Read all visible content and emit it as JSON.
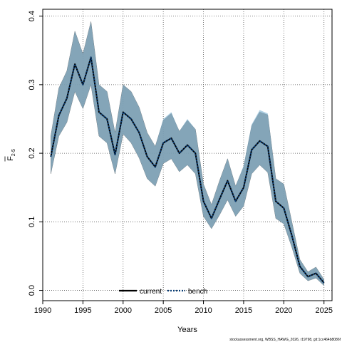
{
  "chart_data": {
    "type": "line",
    "xlabel": "Years",
    "ylabel_main": "F",
    "ylabel_sub": "2-5",
    "xlim": [
      1990,
      2026
    ],
    "ylim": [
      -0.015,
      0.41
    ],
    "x_ticks": [
      1990,
      1995,
      2000,
      2005,
      2010,
      2015,
      2020,
      2025
    ],
    "x_tick_labels": [
      "1990",
      "1995",
      "2000",
      "2005",
      "2010",
      "2015",
      "2020",
      "2025"
    ],
    "y_ticks": [
      0.0,
      0.1,
      0.2,
      0.3,
      0.4
    ],
    "y_tick_labels": [
      "0.0",
      "0.1",
      "0.2",
      "0.3",
      "0.4"
    ],
    "grid": true,
    "legend_position": "bottom",
    "years": [
      1991,
      1992,
      1993,
      1994,
      1995,
      1996,
      1997,
      1998,
      1999,
      2000,
      2001,
      2002,
      2003,
      2004,
      2005,
      2006,
      2007,
      2008,
      2009,
      2010,
      2011,
      2012,
      2013,
      2014,
      2015,
      2016,
      2017,
      2018,
      2019,
      2020,
      2021,
      2022,
      2023,
      2024,
      2025
    ],
    "series": [
      {
        "name": "current",
        "color": "#000000",
        "band_color": "#808080",
        "values": [
          0.195,
          0.255,
          0.28,
          0.33,
          0.3,
          0.34,
          0.26,
          0.25,
          0.198,
          0.26,
          0.25,
          0.23,
          0.195,
          0.18,
          0.215,
          0.222,
          0.2,
          0.212,
          0.2,
          0.13,
          0.105,
          0.133,
          0.16,
          0.13,
          0.15,
          0.205,
          0.218,
          0.21,
          0.13,
          0.12,
          0.08,
          0.035,
          0.02,
          0.025,
          0.011
        ],
        "lower": [
          0.17,
          0.225,
          0.245,
          0.29,
          0.265,
          0.3,
          0.225,
          0.215,
          0.17,
          0.228,
          0.215,
          0.193,
          0.163,
          0.152,
          0.185,
          0.192,
          0.173,
          0.183,
          0.17,
          0.108,
          0.09,
          0.11,
          0.132,
          0.108,
          0.123,
          0.17,
          0.183,
          0.172,
          0.105,
          0.097,
          0.063,
          0.025,
          0.014,
          0.018,
          0.007
        ],
        "upper": [
          0.225,
          0.295,
          0.32,
          0.378,
          0.345,
          0.392,
          0.3,
          0.29,
          0.23,
          0.3,
          0.29,
          0.267,
          0.23,
          0.21,
          0.248,
          0.258,
          0.232,
          0.248,
          0.235,
          0.155,
          0.125,
          0.16,
          0.192,
          0.152,
          0.18,
          0.24,
          0.26,
          0.256,
          0.163,
          0.155,
          0.1,
          0.045,
          0.027,
          0.034,
          0.016
        ]
      },
      {
        "name": "bench",
        "color": "#0a3f78",
        "band_color": "#7ab0d0",
        "values": [
          0.195,
          0.255,
          0.28,
          0.33,
          0.3,
          0.34,
          0.26,
          0.25,
          0.198,
          0.26,
          0.25,
          0.23,
          0.195,
          0.18,
          0.215,
          0.222,
          0.2,
          0.212,
          0.2,
          0.13,
          0.105,
          0.133,
          0.16,
          0.13,
          0.15,
          0.205,
          0.218,
          0.21,
          0.13,
          0.12,
          0.08,
          0.035,
          0.02,
          0.025,
          0.011
        ],
        "lower": [
          0.17,
          0.225,
          0.245,
          0.29,
          0.265,
          0.3,
          0.225,
          0.215,
          0.17,
          0.228,
          0.215,
          0.193,
          0.163,
          0.152,
          0.185,
          0.192,
          0.173,
          0.183,
          0.17,
          0.108,
          0.09,
          0.11,
          0.132,
          0.108,
          0.123,
          0.17,
          0.183,
          0.172,
          0.105,
          0.097,
          0.063,
          0.025,
          0.014,
          0.018,
          0.007
        ],
        "upper": [
          0.225,
          0.295,
          0.32,
          0.378,
          0.345,
          0.392,
          0.3,
          0.29,
          0.23,
          0.3,
          0.29,
          0.267,
          0.23,
          0.21,
          0.25,
          0.26,
          0.232,
          0.25,
          0.235,
          0.155,
          0.125,
          0.16,
          0.192,
          0.152,
          0.182,
          0.242,
          0.263,
          0.258,
          0.163,
          0.155,
          0.1,
          0.045,
          0.027,
          0.034,
          0.016
        ]
      }
    ],
    "footer": "stockassessment.org, WBSS_HAWG_2026, r19798, git:1cc464b8086f"
  }
}
